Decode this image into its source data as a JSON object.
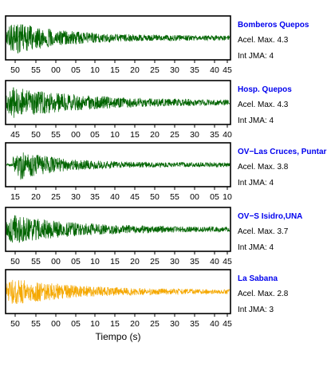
{
  "chart_data": {
    "type": "line",
    "xlabel": "Tiempo (s)",
    "panels": [
      {
        "station": "Bomberos Quepos",
        "accel_label": "Acel. Max. 4.3",
        "int_label": "Int JMA: 4",
        "color": "#006400",
        "x_ticks": [
          "50",
          "55",
          "00",
          "05",
          "10",
          "15",
          "20",
          "25",
          "30",
          "35",
          "40",
          "45"
        ],
        "peak_fraction": 0.95,
        "onset_fraction": 0.0,
        "decay": 0.22
      },
      {
        "station": "Hosp. Quepos",
        "accel_label": "Acel. Max. 4.3",
        "int_label": "Int JMA: 4",
        "color": "#006400",
        "x_ticks": [
          "45",
          "50",
          "55",
          "00",
          "05",
          "10",
          "15",
          "20",
          "25",
          "30",
          "35",
          "40"
        ],
        "peak_fraction": 0.85,
        "onset_fraction": 0.0,
        "decay": 0.35
      },
      {
        "station": "OV−Las Cruces, Puntar",
        "accel_label": "Acel. Max. 3.8",
        "int_label": "Int JMA: 4",
        "color": "#006400",
        "x_ticks": [
          "15",
          "20",
          "25",
          "30",
          "35",
          "40",
          "45",
          "50",
          "55",
          "00",
          "05",
          "10"
        ],
        "peak_fraction": 0.9,
        "onset_fraction": 0.03,
        "decay": 0.18
      },
      {
        "station": "OV−S Isidro,UNA",
        "accel_label": "Acel. Max. 3.7",
        "int_label": "Int JMA: 4",
        "color": "#006400",
        "x_ticks": [
          "50",
          "55",
          "00",
          "05",
          "10",
          "15",
          "20",
          "25",
          "30",
          "35",
          "40",
          "45"
        ],
        "peak_fraction": 0.8,
        "onset_fraction": 0.0,
        "decay": 0.3
      },
      {
        "station": "La Sabana",
        "accel_label": "Acel. Max. 2.8",
        "int_label": "Int JMA: 3",
        "color": "#f5a800",
        "x_ticks": [
          "50",
          "55",
          "00",
          "05",
          "10",
          "15",
          "20",
          "25",
          "30",
          "35",
          "40",
          "45"
        ],
        "peak_fraction": 0.75,
        "onset_fraction": 0.0,
        "decay": 0.3
      }
    ]
  }
}
